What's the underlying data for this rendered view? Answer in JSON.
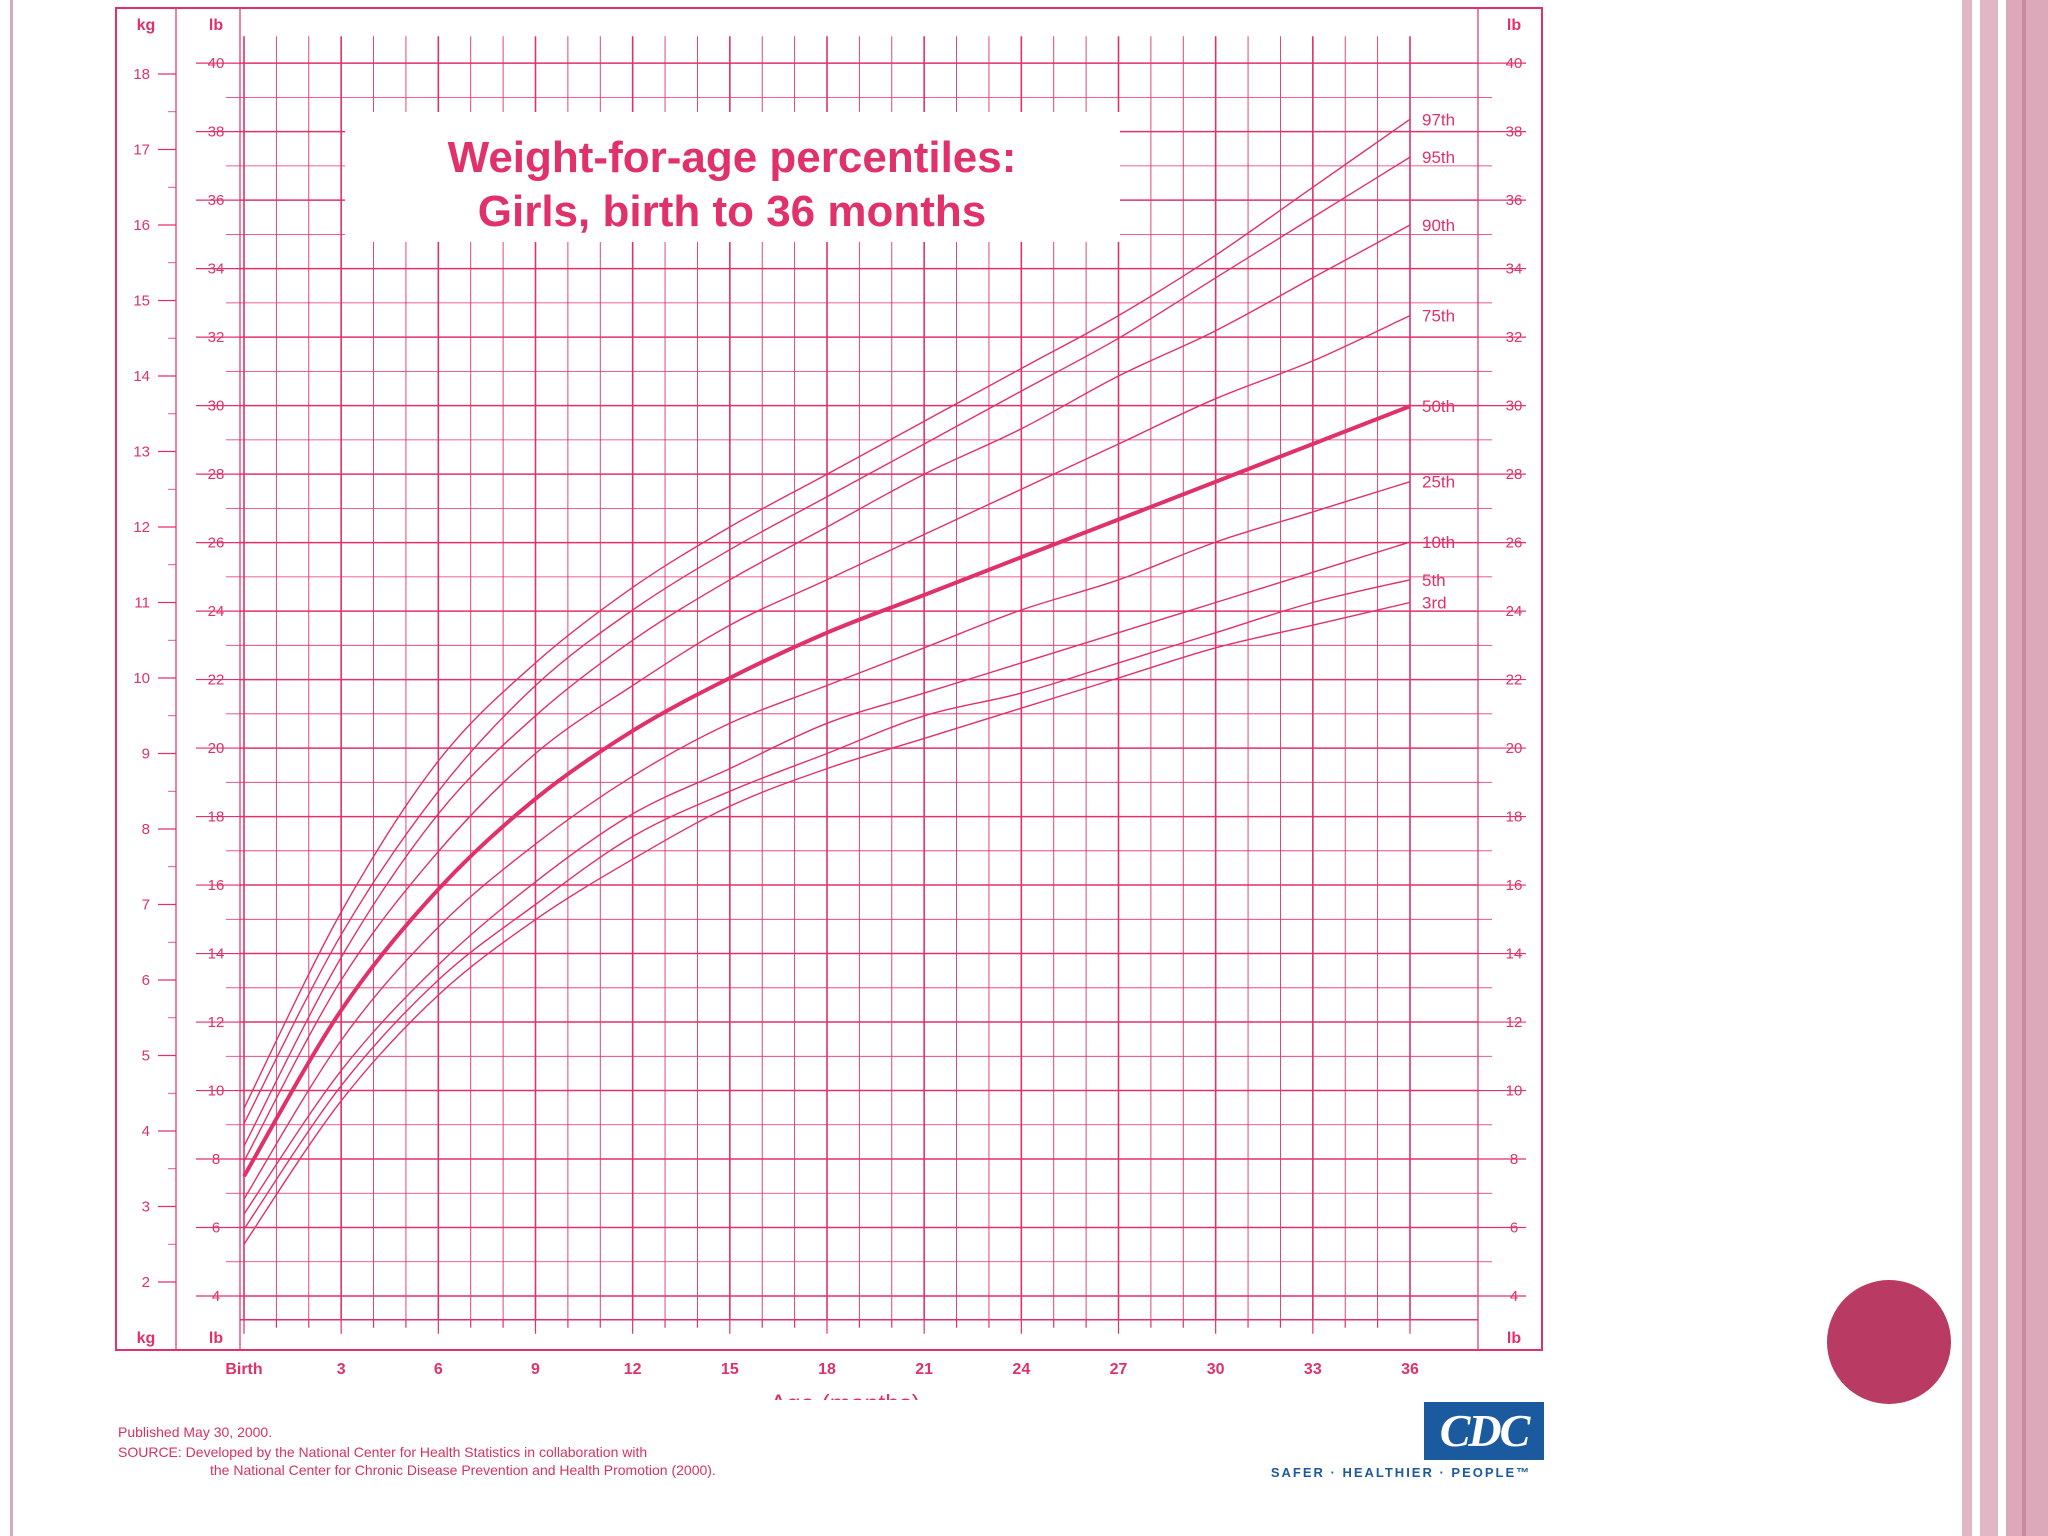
{
  "chart_data": {
    "type": "line",
    "title": "Weight-for-age percentiles:",
    "subtitle": "Girls, birth to 36 months",
    "xlabel": "Age (months)",
    "left_units": [
      "kg",
      "lb"
    ],
    "right_units": [
      "lb"
    ],
    "x_ticks": [
      {
        "x": 0,
        "label": "Birth"
      },
      {
        "x": 3,
        "label": "3"
      },
      {
        "x": 6,
        "label": "6"
      },
      {
        "x": 9,
        "label": "9"
      },
      {
        "x": 12,
        "label": "12"
      },
      {
        "x": 15,
        "label": "15"
      },
      {
        "x": 18,
        "label": "18"
      },
      {
        "x": 21,
        "label": "21"
      },
      {
        "x": 24,
        "label": "24"
      },
      {
        "x": 27,
        "label": "27"
      },
      {
        "x": 30,
        "label": "30"
      },
      {
        "x": 33,
        "label": "33"
      },
      {
        "x": 36,
        "label": "36"
      }
    ],
    "kg_ticks": [
      2,
      3,
      4,
      5,
      6,
      7,
      8,
      9,
      10,
      11,
      12,
      13,
      14,
      15,
      16,
      17,
      18
    ],
    "lb_ticks": [
      4,
      6,
      8,
      10,
      12,
      14,
      16,
      18,
      20,
      22,
      24,
      26,
      28,
      30,
      32,
      34,
      36,
      38,
      40
    ],
    "xlim": [
      0,
      36
    ],
    "ylim_kg": [
      1.5,
      18.5
    ],
    "grid": true,
    "x": [
      0,
      3,
      6,
      9,
      12,
      15,
      18,
      21,
      24,
      27,
      30,
      33,
      36
    ],
    "series": [
      {
        "name": "97th",
        "values": [
          4.3,
          6.9,
          8.9,
          10.2,
          11.2,
          12.0,
          12.7,
          13.4,
          14.1,
          14.8,
          15.6,
          16.5,
          17.4
        ]
      },
      {
        "name": "95th",
        "values": [
          4.1,
          6.6,
          8.5,
          9.9,
          10.9,
          11.7,
          12.4,
          13.1,
          13.8,
          14.5,
          15.3,
          16.1,
          16.9
        ]
      },
      {
        "name": "90th",
        "values": [
          3.8,
          6.3,
          8.2,
          9.5,
          10.5,
          11.3,
          12.0,
          12.7,
          13.3,
          14.0,
          14.6,
          15.3,
          16.0
        ]
      },
      {
        "name": "75th",
        "values": [
          3.6,
          6.0,
          7.7,
          9.0,
          9.9,
          10.7,
          11.3,
          11.9,
          12.5,
          13.1,
          13.7,
          14.2,
          14.8
        ]
      },
      {
        "name": "50th",
        "values": [
          3.4,
          5.6,
          7.2,
          8.4,
          9.3,
          10.0,
          10.6,
          11.1,
          11.6,
          12.1,
          12.6,
          13.1,
          13.6
        ]
      },
      {
        "name": "25th",
        "values": [
          3.1,
          5.2,
          6.7,
          7.8,
          8.7,
          9.4,
          9.9,
          10.4,
          10.9,
          11.3,
          11.8,
          12.2,
          12.6
        ]
      },
      {
        "name": "10th",
        "values": [
          2.9,
          4.8,
          6.2,
          7.3,
          8.2,
          8.8,
          9.4,
          9.8,
          10.2,
          10.6,
          11.0,
          11.4,
          11.8
        ]
      },
      {
        "name": "5th",
        "values": [
          2.7,
          4.6,
          6.0,
          7.0,
          7.9,
          8.5,
          9.0,
          9.5,
          9.8,
          10.2,
          10.6,
          11.0,
          11.3
        ]
      },
      {
        "name": "3rd",
        "values": [
          2.5,
          4.4,
          5.8,
          6.8,
          7.6,
          8.3,
          8.8,
          9.2,
          9.6,
          10.0,
          10.4,
          10.7,
          11.0
        ]
      }
    ],
    "highlight_series": "50th",
    "line_color": "#e0316a"
  },
  "footer": {
    "published": "Published May 30, 2000.",
    "source_line1": "SOURCE: Developed by the National Center for Health Statistics in collaboration with",
    "source_line2": "the National Center for Chronic Disease Prevention and Health Promotion (2000).",
    "logo_text": "CDC",
    "tagline": "SAFER · HEALTHIER · PEOPLE™"
  }
}
